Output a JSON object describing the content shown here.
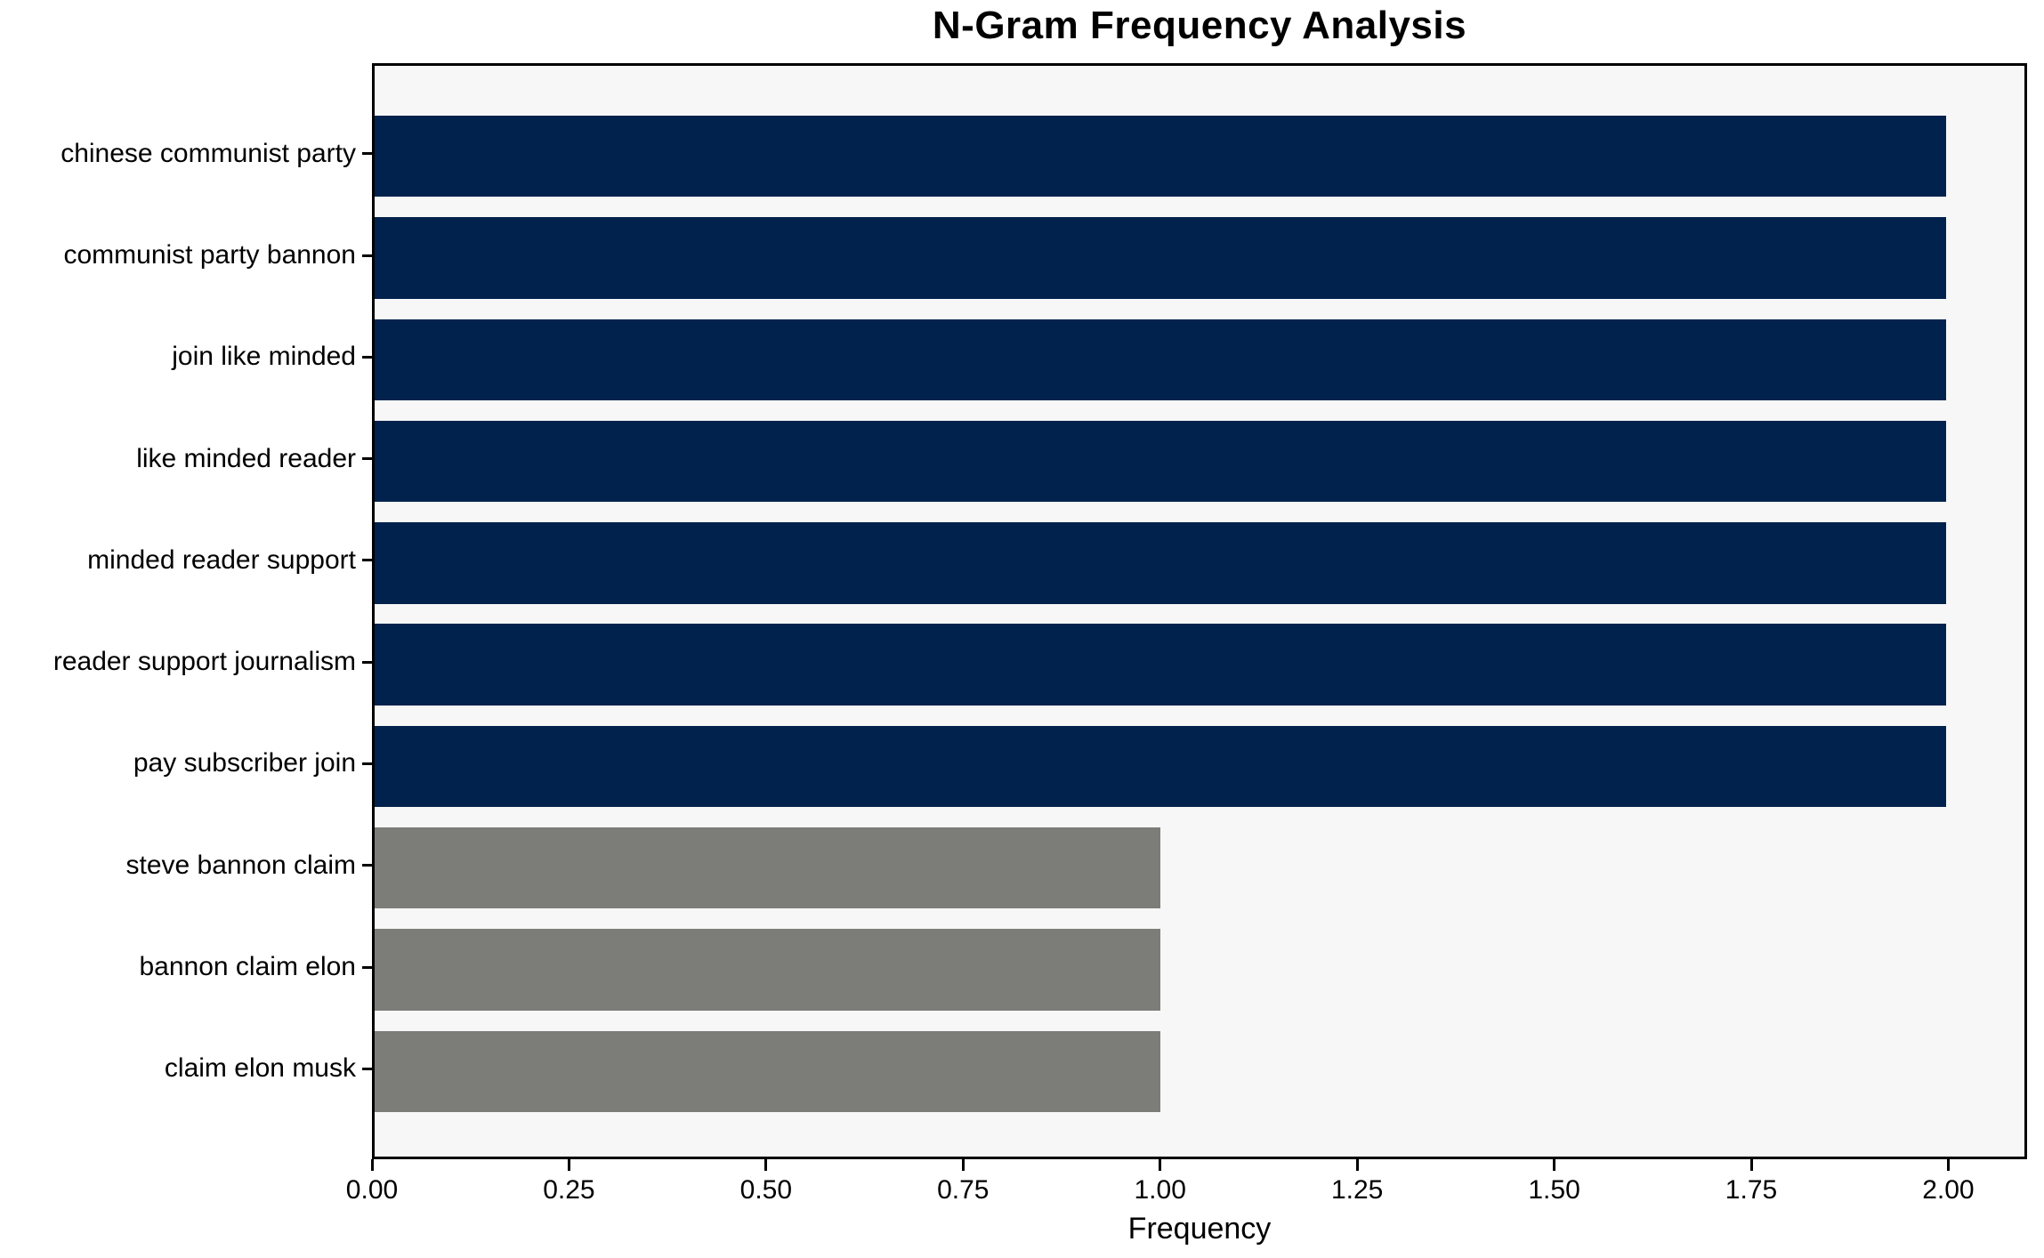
{
  "chart_data": {
    "type": "bar",
    "orientation": "horizontal",
    "title": "N-Gram Frequency Analysis",
    "xlabel": "Frequency",
    "ylabel": "",
    "categories": [
      "chinese communist party",
      "communist party bannon",
      "join like minded",
      "like minded reader",
      "minded reader support",
      "reader support journalism",
      "pay subscriber join",
      "steve bannon claim",
      "bannon claim elon",
      "claim elon musk"
    ],
    "values": [
      2,
      2,
      2,
      2,
      2,
      2,
      2,
      1,
      1,
      1
    ],
    "bar_colors": [
      "#00224d",
      "#00224d",
      "#00224d",
      "#00224d",
      "#00224d",
      "#00224d",
      "#00224d",
      "#7c7c79",
      "#7c7c79",
      "#7c7c79"
    ],
    "xlim": [
      0,
      2.1
    ],
    "xticks": [
      0,
      0.25,
      0.5,
      0.75,
      1.0,
      1.25,
      1.5,
      1.75,
      2.0
    ],
    "xtick_labels": [
      "0.00",
      "0.25",
      "0.50",
      "0.75",
      "1.00",
      "1.25",
      "1.50",
      "1.75",
      "2.00"
    ],
    "grid": false,
    "legend": false,
    "colors": {
      "bar_high": "#00224d",
      "bar_low": "#7c7c79",
      "plot_background": "#f7f7f7",
      "figure_background": "#ffffff",
      "axis": "#000000",
      "text": "#000000"
    }
  }
}
